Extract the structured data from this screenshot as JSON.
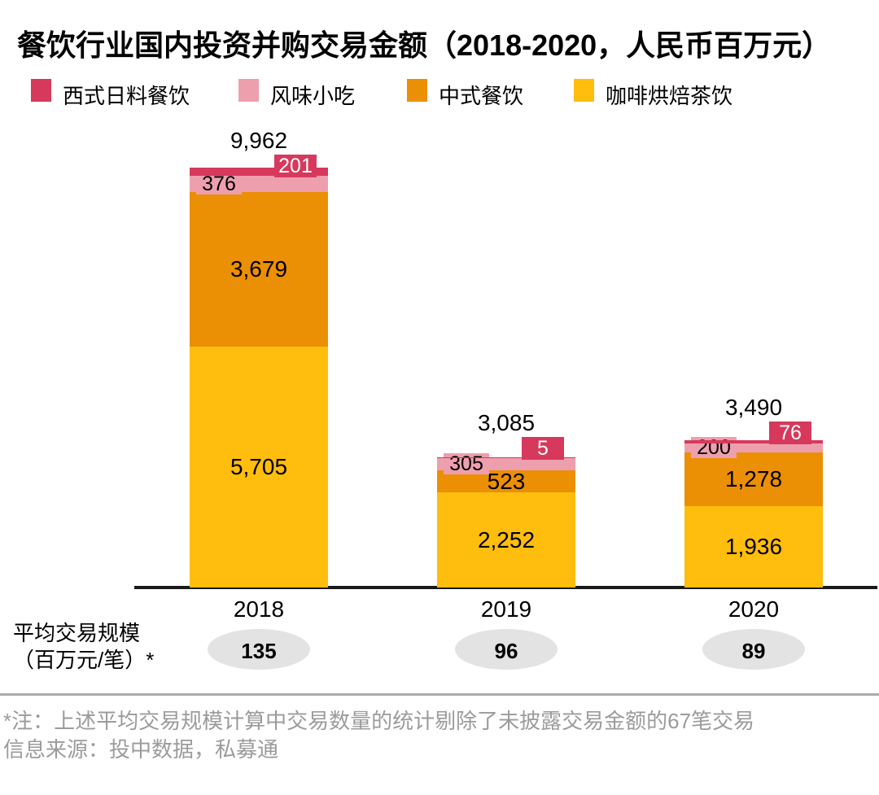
{
  "title": "餐饮行业国内投资并购交易金额（2018-2020，人民币百万元）",
  "legend": [
    {
      "key": "western",
      "label": "西式日料餐饮"
    },
    {
      "key": "snacks",
      "label": "风味小吃"
    },
    {
      "key": "chinese",
      "label": "中式餐饮"
    },
    {
      "key": "coffee",
      "label": "咖啡烘焙茶饮"
    }
  ],
  "colors": {
    "western": "#D6395C",
    "snacks": "#EE9FAE",
    "chinese": "#EB8F05",
    "coffee": "#FFBD0D",
    "axis": "#1A1A1A",
    "badge_bg": "#E3E3E3",
    "note_text": "#9B9B9B",
    "divider": "#ABABAB",
    "callout_text": "#FFFFFF"
  },
  "chart_data": {
    "type": "bar",
    "stacked": true,
    "title": "餐饮行业国内投资并购交易金额（2018-2020，人民币百万元）",
    "unit": "人民币百万元",
    "categories": [
      "2018",
      "2019",
      "2020"
    ],
    "series": [
      {
        "name": "咖啡烘焙茶饮",
        "key": "coffee",
        "values": [
          5705,
          2252,
          1936
        ]
      },
      {
        "name": "中式餐饮",
        "key": "chinese",
        "values": [
          3679,
          523,
          1278
        ]
      },
      {
        "name": "风味小吃",
        "key": "snacks",
        "values": [
          376,
          305,
          200
        ]
      },
      {
        "name": "西式日料餐饮",
        "key": "western",
        "values": [
          201,
          5,
          76
        ]
      }
    ],
    "totals": [
      9962,
      3085,
      3490
    ],
    "ylim": [
      0,
      10000
    ],
    "grid": false,
    "legend_position": "top"
  },
  "avg_row": {
    "label_line1": "平均交易规模",
    "label_line2": "（百万元/笔）*",
    "values": [
      "135",
      "96",
      "89"
    ]
  },
  "footnotes": [
    "*注：上述平均交易规模计算中交易数量的统计剔除了未披露交易金额的67笔交易",
    "信息来源：投中数据，私募通"
  ]
}
